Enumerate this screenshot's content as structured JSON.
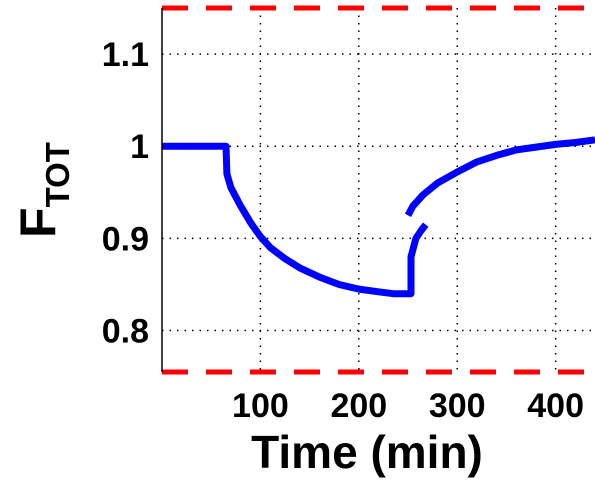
{
  "chart_data": {
    "type": "line",
    "xlabel": "Time (min)",
    "ylabel_main": "F",
    "ylabel_sub": "TOT",
    "xlim": [
      0,
      440
    ],
    "ylim": [
      0.755,
      1.15
    ],
    "x_ticks": [
      100,
      200,
      300,
      400
    ],
    "y_ticks": [
      0.8,
      0.9,
      1,
      1.1
    ],
    "y_tick_labels": [
      "0.8",
      "0.9",
      "1",
      "1.1"
    ],
    "grid": true,
    "grid_style": "dotted",
    "reference_lines": [
      {
        "y": 1.15,
        "style": "dashed",
        "color": "#ff0000"
      },
      {
        "y": 0.755,
        "style": "dashed",
        "color": "#ff0000"
      }
    ],
    "series": [
      {
        "color": "#0000ff",
        "segments": [
          [
            [
              0,
              1.0
            ],
            [
              65,
              1.0
            ],
            [
              66,
              0.97
            ],
            [
              70,
              0.955
            ],
            [
              80,
              0.935
            ],
            [
              90,
              0.917
            ],
            [
              100,
              0.902
            ],
            [
              110,
              0.89
            ],
            [
              125,
              0.878
            ],
            [
              140,
              0.868
            ],
            [
              160,
              0.858
            ],
            [
              180,
              0.85
            ],
            [
              200,
              0.845
            ],
            [
              220,
              0.842
            ],
            [
              235,
              0.84
            ],
            [
              253,
              0.84
            ],
            [
              253,
              0.88
            ],
            [
              258,
              0.9
            ],
            [
              263,
              0.908
            ],
            [
              268,
              0.915
            ]
          ],
          [
            [
              250,
              0.925
            ],
            [
              255,
              0.935
            ],
            [
              265,
              0.947
            ],
            [
              280,
              0.96
            ],
            [
              300,
              0.972
            ],
            [
              320,
              0.983
            ],
            [
              340,
              0.99
            ],
            [
              360,
              0.996
            ],
            [
              380,
              0.999
            ],
            [
              400,
              1.002
            ],
            [
              420,
              1.004
            ],
            [
              440,
              1.007
            ]
          ]
        ]
      }
    ]
  }
}
